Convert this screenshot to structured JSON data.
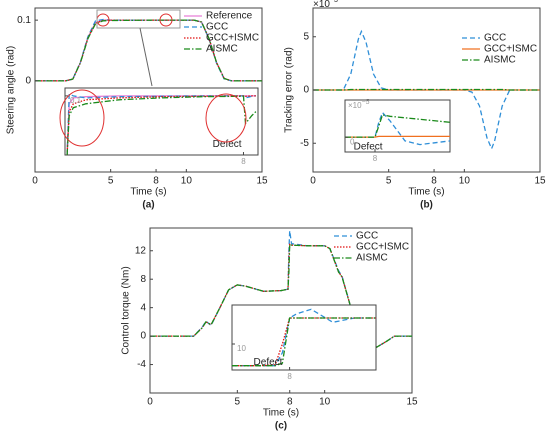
{
  "chart_data": [
    {
      "type": "line",
      "caption": "(a)",
      "xlabel": "Time (s)",
      "ylabel": "Steering angle (rad)",
      "x": [
        0,
        2,
        2.5,
        3,
        3.5,
        4,
        4.5,
        5,
        8,
        10,
        10.5,
        11,
        11.5,
        12,
        12.5,
        13,
        15
      ],
      "series": [
        {
          "name": "Reference",
          "color": "#e87fd6",
          "dash": "solid",
          "values": [
            0,
            0,
            0.003,
            0.03,
            0.072,
            0.096,
            0.1,
            0.1,
            0.1,
            0.1,
            0.1,
            0.097,
            0.07,
            0.03,
            0.004,
            0,
            0
          ]
        },
        {
          "name": "GCC",
          "color": "#2f8fd8",
          "dash": "dashed",
          "values": [
            0,
            0,
            0.003,
            0.031,
            0.073,
            0.099,
            0.101,
            0.1,
            0.1,
            0.1,
            0.1,
            0.097,
            0.069,
            0.029,
            0.003,
            0,
            0
          ]
        },
        {
          "name": "GCC+ISMC",
          "color": "#e01010",
          "dash": "dotted",
          "values": [
            0,
            0,
            0.003,
            0.03,
            0.071,
            0.095,
            0.0995,
            0.1,
            0.1,
            0.1,
            0.1,
            0.097,
            0.07,
            0.03,
            0.004,
            0,
            0
          ]
        },
        {
          "name": "AISMC",
          "color": "#1a8a1a",
          "dash": "dashdot",
          "values": [
            0,
            0,
            0.003,
            0.03,
            0.07,
            0.094,
            0.099,
            0.0995,
            0.1,
            0.1,
            0.1,
            0.097,
            0.07,
            0.03,
            0.004,
            0,
            0
          ]
        }
      ],
      "xlim": [
        0,
        15
      ],
      "xticks": [
        0,
        5,
        8,
        10,
        15
      ],
      "ylim": [
        -0.15,
        0.12
      ],
      "yticks": [
        0,
        0.1
      ],
      "legend": "upper right"
    },
    {
      "type": "line",
      "annotation": "Defect",
      "x": [
        3.75,
        3.8,
        3.9,
        4.2,
        5,
        6,
        7,
        7.9,
        8,
        8.05,
        8.2,
        8.3
      ],
      "series": [
        {
          "name": "Reference",
          "color": "#e87fd6",
          "dash": "solid",
          "values": [
            0.085,
            0.098,
            0.0995,
            0.0998,
            0.1,
            0.1,
            0.1,
            0.1,
            0.1,
            0.1,
            0.1,
            0.1
          ]
        },
        {
          "name": "GCC",
          "color": "#2f8fd8",
          "dash": "dashed",
          "values": [
            0.085,
            0.1005,
            0.1,
            0.0995,
            0.0998,
            0.0999,
            0.1,
            0.1,
            0.1,
            0.0995,
            0.0999,
            0.1
          ]
        },
        {
          "name": "GCC+ISMC",
          "color": "#e01010",
          "dash": "dotted",
          "values": [
            0.085,
            0.096,
            0.098,
            0.099,
            0.0995,
            0.0998,
            0.0999,
            0.1,
            0.1,
            0.0999,
            0.1,
            0.1
          ]
        },
        {
          "name": "AISMC",
          "color": "#1a8a1a",
          "dash": "dashdot",
          "values": [
            0.085,
            0.095,
            0.097,
            0.098,
            0.099,
            0.0995,
            0.0998,
            0.0999,
            0.0999,
            0.093,
            0.095,
            0.096
          ]
        }
      ],
      "xlim": [
        3.7,
        8.35
      ],
      "xticks": [
        8
      ],
      "ylim": [
        0.085,
        0.102
      ],
      "yticks": [
        0.1
      ]
    },
    {
      "type": "line",
      "caption": "(b)",
      "xlabel": "Time (s)",
      "ylabel": "Tracking error (rad)",
      "y_multiplier": "×10",
      "y_multiplier_exp": "−3",
      "x": [
        0,
        2,
        2.5,
        3,
        3.2,
        3.5,
        4,
        4.5,
        5,
        10,
        10.5,
        11,
        11.5,
        11.8,
        12,
        12.5,
        13,
        15
      ],
      "series": [
        {
          "name": "GCC",
          "color": "#2f8fd8",
          "dash": "dashed",
          "values": [
            0,
            0,
            1.5,
            4.8,
            5.5,
            4.5,
            1.5,
            0.2,
            0,
            0,
            -0.2,
            -1.5,
            -4.5,
            -5.5,
            -4.8,
            -1.5,
            0,
            0
          ]
        },
        {
          "name": "GCC+ISMC",
          "color": "#f07020",
          "dash": "solid",
          "values": [
            0,
            0,
            0,
            0,
            0,
            0,
            0,
            0,
            0,
            0,
            0,
            0,
            0,
            0,
            0,
            0,
            0,
            0
          ]
        },
        {
          "name": "AISMC",
          "color": "#1a8a1a",
          "dash": "dashdot",
          "values": [
            0,
            0,
            0.05,
            0.05,
            0.05,
            0.05,
            0.05,
            0.05,
            0.05,
            0.05,
            0.05,
            0.05,
            0.05,
            0.05,
            0.05,
            0.05,
            0,
            0
          ]
        }
      ],
      "xlim": [
        0,
        15
      ],
      "xticks": [
        0,
        5,
        8,
        10,
        15
      ],
      "ylim": [
        -7.7,
        7.7
      ],
      "yticks": [
        -5,
        0,
        5
      ],
      "legend": "right"
    },
    {
      "type": "line",
      "annotation": "Defect",
      "y_multiplier": "×10",
      "y_multiplier_exp": "−5",
      "x": [
        7.6,
        7.95,
        8,
        8.05,
        8.1,
        8.2,
        8.4,
        8.6,
        9
      ],
      "series": [
        {
          "name": "GCC",
          "color": "#2f8fd8",
          "dash": "dashed",
          "values": [
            0,
            0,
            0,
            2,
            3.3,
            2.2,
            -0.5,
            -1,
            -0.5
          ]
        },
        {
          "name": "GCC+ISMC",
          "color": "#f07020",
          "dash": "solid",
          "values": [
            0,
            0,
            0,
            0.1,
            0.1,
            0.1,
            0.1,
            0.1,
            0.1
          ]
        },
        {
          "name": "AISMC",
          "color": "#1a8a1a",
          "dash": "dashdot",
          "values": [
            0,
            0,
            0,
            1.5,
            3,
            2.8,
            2.6,
            2.4,
            2
          ]
        }
      ],
      "xlim": [
        7.6,
        9
      ],
      "xticks": [
        8
      ],
      "ylim": [
        -2,
        5
      ],
      "yticks": [
        0
      ]
    },
    {
      "type": "line",
      "caption": "(c)",
      "xlabel": "Time (s)",
      "ylabel": "Control torque (Nm)",
      "x": [
        0,
        2.5,
        3,
        3.2,
        3.5,
        4,
        4.5,
        5,
        5.5,
        6.5,
        7.5,
        7.9,
        7.95,
        8,
        8.1,
        9,
        10,
        10.3,
        10.8,
        11,
        11.5,
        12,
        12.5,
        12.8,
        13.5,
        14,
        15
      ],
      "series": [
        {
          "name": "GCC",
          "color": "#2f8fd8",
          "dash": "dashed",
          "values": [
            0,
            0,
            1.3,
            2.1,
            1.5,
            4,
            6.5,
            7.2,
            7,
            6.3,
            6.4,
            6.6,
            12,
            14.8,
            13,
            12.7,
            12.7,
            12.3,
            9.2,
            8.4,
            4,
            0.5,
            -1.2,
            -1.8,
            -0.8,
            0,
            0
          ]
        },
        {
          "name": "GCC+ISMC",
          "color": "#e01010",
          "dash": "dotted",
          "values": [
            0,
            0,
            1.2,
            2,
            1.6,
            4,
            6.5,
            7.2,
            7,
            6.3,
            6.4,
            6.6,
            11,
            12.9,
            12.8,
            12.7,
            12.7,
            12.3,
            9,
            8.3,
            4,
            0.5,
            -1.2,
            -1.8,
            -0.8,
            0,
            0
          ]
        },
        {
          "name": "AISMC",
          "color": "#1a8a1a",
          "dash": "dashdot",
          "values": [
            0,
            0,
            1.2,
            2,
            1.6,
            4,
            6.5,
            7.2,
            7,
            6.3,
            6.4,
            6.6,
            9,
            12.9,
            12.8,
            12.7,
            12.7,
            12.3,
            9,
            8.3,
            4,
            0.5,
            -1.2,
            -1.8,
            -0.8,
            0,
            0
          ]
        }
      ],
      "xlim": [
        0,
        15
      ],
      "xticks": [
        0,
        5,
        8,
        10,
        15
      ],
      "ylim": [
        -8,
        15.2
      ],
      "yticks": [
        -4,
        0,
        4,
        8,
        12
      ],
      "legend": "upper right"
    },
    {
      "type": "line",
      "annotation": "Defect",
      "x": [
        7.6,
        7.8,
        7.9,
        7.95,
        8,
        8.05,
        8.15,
        8.3,
        8.45,
        8.6
      ],
      "series": [
        {
          "name": "GCC",
          "color": "#2f8fd8",
          "dash": "dashed",
          "values": [
            7.5,
            7.5,
            7.5,
            9,
            13,
            13.5,
            14,
            12.5,
            13,
            13
          ]
        },
        {
          "name": "GCC+ISMC",
          "color": "#e01010",
          "dash": "dotted",
          "values": [
            7.5,
            7.5,
            7.6,
            10,
            13,
            13,
            13,
            13,
            13,
            13
          ]
        },
        {
          "name": "AISMC",
          "color": "#1a8a1a",
          "dash": "dashdot",
          "values": [
            7.5,
            7.5,
            7.5,
            7.8,
            13,
            13,
            13,
            13,
            13,
            13
          ]
        }
      ],
      "xlim": [
        7.6,
        8.6
      ],
      "xticks": [
        8
      ],
      "ylim": [
        7,
        14.5
      ],
      "yticks": [
        10
      ]
    }
  ]
}
